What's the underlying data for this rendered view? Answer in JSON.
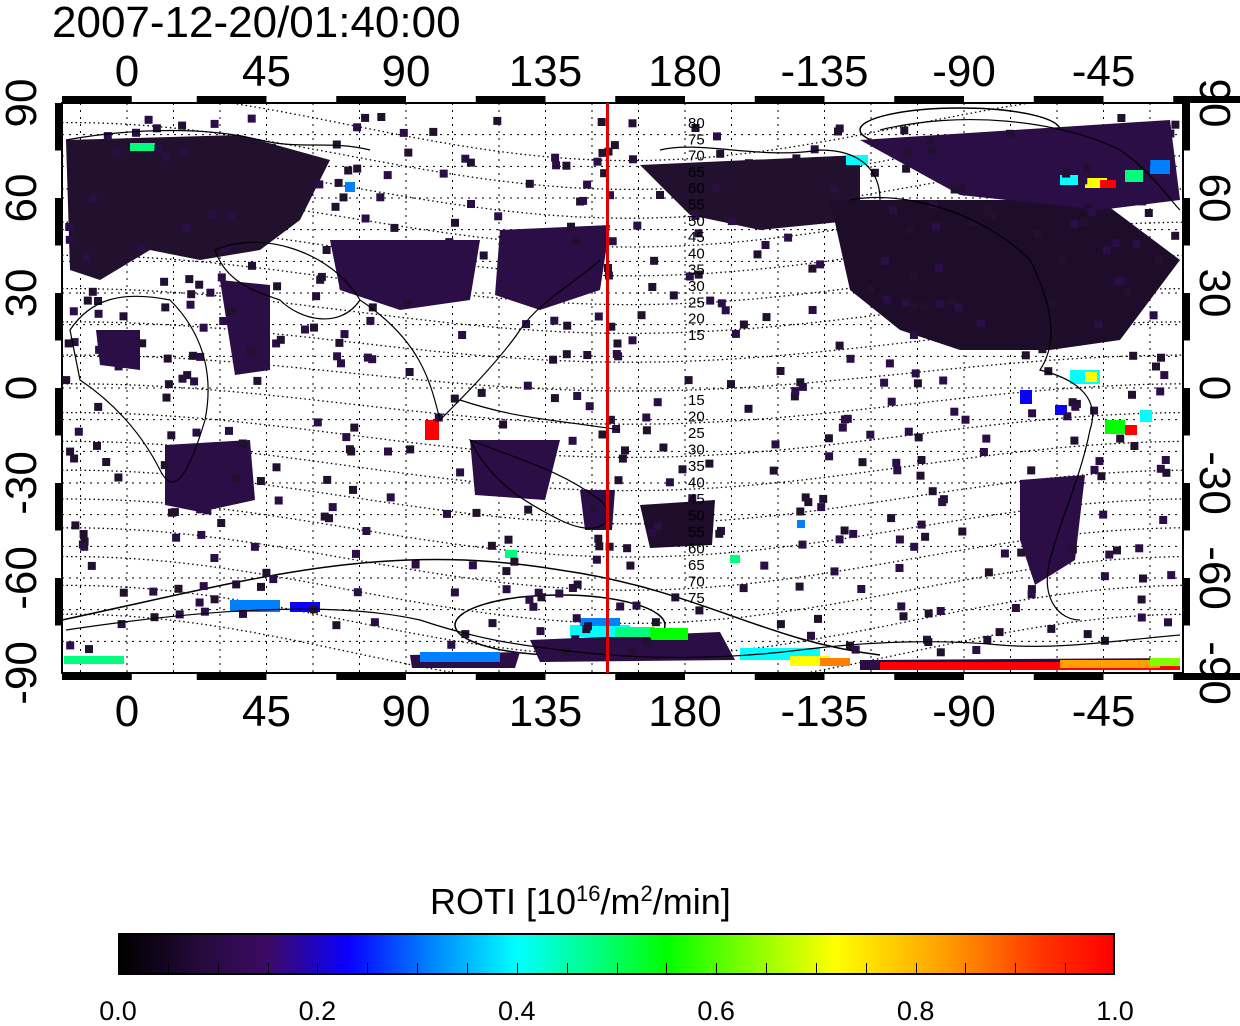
{
  "title": "2007-12-20/01:40:00",
  "map": {
    "lon_ticks": [
      "0",
      "45",
      "90",
      "135",
      "180",
      "-135",
      "-90",
      "-45"
    ],
    "lat_ticks": [
      "90",
      "60",
      "30",
      "0",
      "-30",
      "-60",
      "-90"
    ],
    "contour_labels_north": [
      "80",
      "75",
      "70",
      "65",
      "60",
      "55",
      "50",
      "45",
      "40",
      "35",
      "30",
      "25",
      "20",
      "15"
    ],
    "contour_labels_south": [
      "15",
      "20",
      "25",
      "30",
      "35",
      "40",
      "45",
      "50",
      "55",
      "60",
      "65",
      "70",
      "75"
    ],
    "marker_line_longitude": 155,
    "marker_line_color": "#e00000"
  },
  "colorbar": {
    "title": "ROTI  [10",
    "title_sup1": "16",
    "title_mid": "/m",
    "title_sup2": "2",
    "title_end": "/min]",
    "ticks": [
      "0.0",
      "0.2",
      "0.4",
      "0.6",
      "0.8",
      "1.0"
    ],
    "range": [
      0.0,
      1.0
    ],
    "colors": [
      "#000000",
      "#3d0a66",
      "#0a00ff",
      "#00ffff",
      "#00ff00",
      "#ffff00",
      "#ff0000"
    ]
  }
}
